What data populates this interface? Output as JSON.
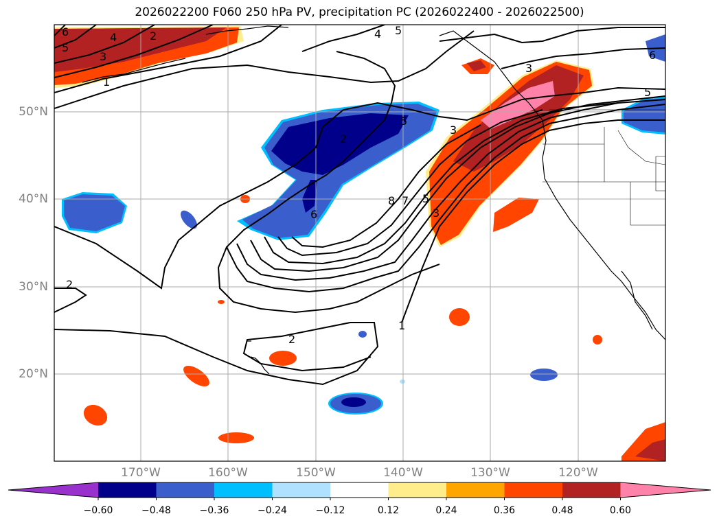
{
  "title": "2026022200 F060 250 hPa PV, precipitation PC (2026022400 - 2026022500)",
  "lat_labels": [
    "50°N",
    "40°N",
    "30°N",
    "20°N"
  ],
  "lon_labels": [
    "170°W",
    "160°W",
    "150°W",
    "140°W",
    "130°W",
    "120°W"
  ],
  "colorbar": {
    "ticks": [
      "−0.60",
      "−0.48",
      "−0.36",
      "−0.24",
      "−0.12",
      "0.12",
      "0.24",
      "0.36",
      "0.48",
      "0.60"
    ],
    "colors": [
      "#9932cc",
      "#00008b",
      "#3a5fcd",
      "#00bfff",
      "#b0e2ff",
      "#ffffff",
      "#ffec8b",
      "#ffa500",
      "#ff4500",
      "#b22222",
      "#ff82ab"
    ]
  },
  "contour_labels": [
    "6",
    "5",
    "3",
    "4",
    "2",
    "1",
    "3",
    "5",
    "4",
    "5",
    "6",
    "3",
    "5",
    "2",
    "6",
    "8",
    "7",
    "5",
    "3",
    "2",
    "2",
    "1"
  ],
  "colors": {
    "frame": "#000000",
    "grid": "#aaaaaa",
    "axis_text": "#808080"
  }
}
